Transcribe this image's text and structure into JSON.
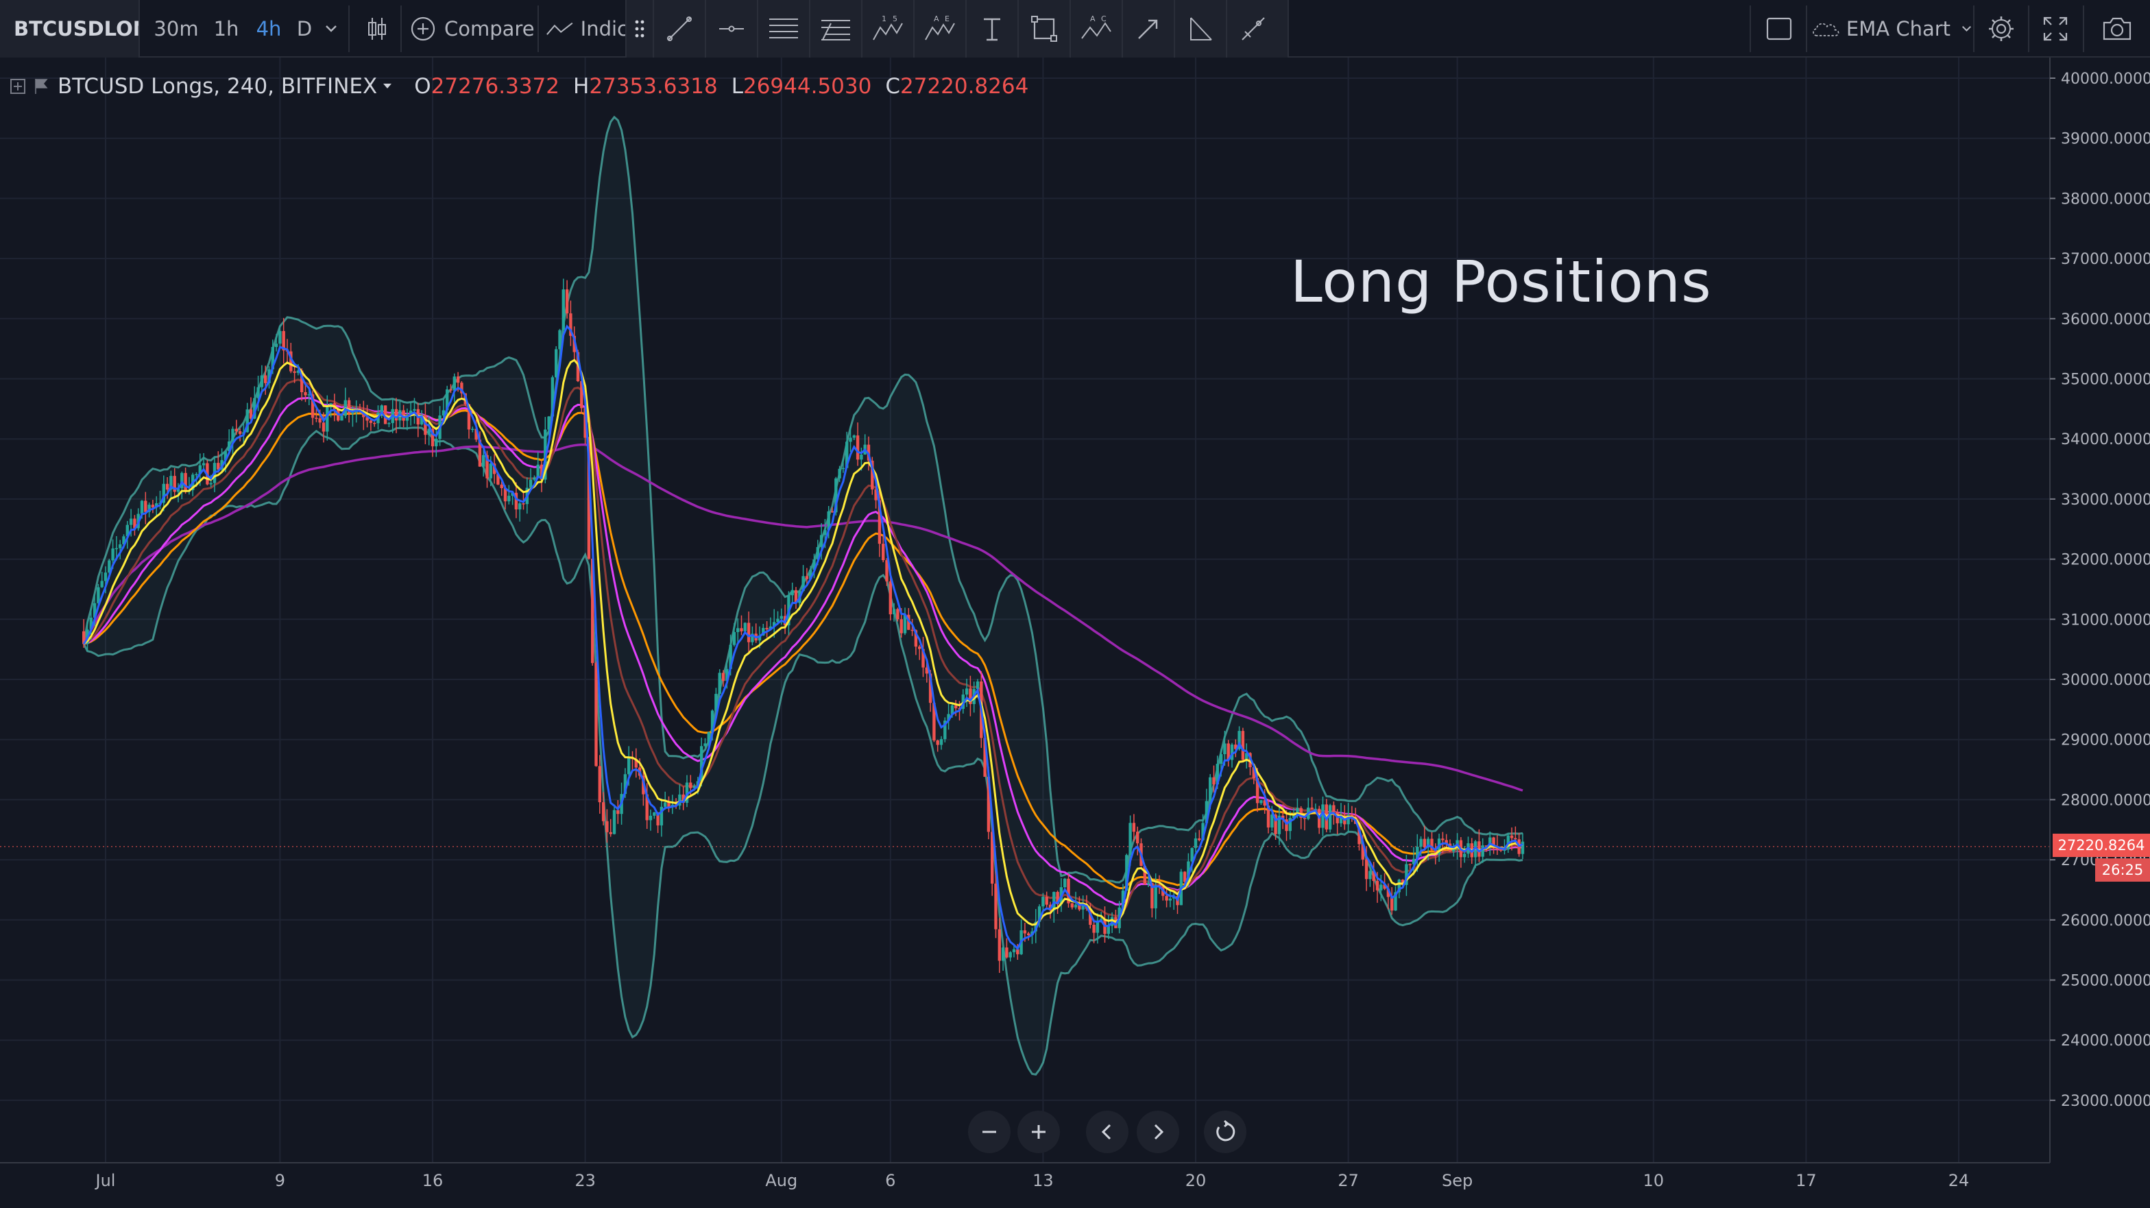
{
  "toolbar": {
    "symbol": "BTCUSDLONGS",
    "intervals": [
      "30m",
      "1h",
      "4h",
      "D"
    ],
    "active_interval": "4h",
    "compare_label": "Compare",
    "indicators_label": "Indic",
    "layout_label": "EMA Chart"
  },
  "drawing_tools": [
    {
      "icon": "trend-line-icon"
    },
    {
      "icon": "horizontal-ray-icon"
    },
    {
      "icon": "parallel-channel-icon"
    },
    {
      "icon": "fib-retracement-icon",
      "glyph": ""
    },
    {
      "icon": "xabcd-pattern-icon",
      "glyph": "1 5"
    },
    {
      "icon": "elliott-wave-icon",
      "glyph": "A E"
    },
    {
      "icon": "text-icon"
    },
    {
      "icon": "rectangle-icon"
    },
    {
      "icon": "abcd-pattern-icon",
      "glyph": "A C"
    },
    {
      "icon": "arrow-icon"
    },
    {
      "icon": "angle-icon"
    },
    {
      "icon": "brush-icon"
    }
  ],
  "legend": {
    "title": "BTCUSD Longs, 240, BITFINEX",
    "open_key": "O",
    "open": "27276.3372",
    "high_key": "H",
    "high": "27353.6318",
    "low_key": "L",
    "low": "26944.5030",
    "close_key": "C",
    "close": "27220.8264"
  },
  "annotation": "Long Positions",
  "price_scale": {
    "labels": [
      "40000.0000",
      "39000.0000",
      "38000.0000",
      "37000.0000",
      "36000.0000",
      "35000.0000",
      "34000.0000",
      "33000.0000",
      "32000.0000",
      "31000.0000",
      "30000.0000",
      "29000.0000",
      "28000.0000",
      "27000.0000",
      "26000.0000",
      "25000.0000",
      "24000.0000",
      "23000.0000"
    ],
    "last_price": "27220.8264",
    "countdown": "26:25"
  },
  "time_scale": {
    "labels": [
      "Jul",
      "9",
      "16",
      "23",
      "Aug",
      "6",
      "13",
      "20",
      "27",
      "Sep",
      "10",
      "17",
      "24"
    ]
  },
  "colors": {
    "background": "#131722",
    "grid": "#1f2433",
    "up": "#26a69a",
    "down": "#ef5350",
    "ema_fast": "#2962ff",
    "ema_yellow": "#ffeb3b",
    "ema_orange": "#ff9800",
    "ema_magenta": "#e040fb",
    "sma_purple": "#9c27b0",
    "bollinger": "#4db6ac"
  },
  "chart_data": {
    "type": "candlestick",
    "symbol": "BTCUSD Longs",
    "interval": "240",
    "exchange": "BITFINEX",
    "ylim": [
      22500,
      40200
    ],
    "grid": true,
    "x_ticks": [
      "Jul",
      "9",
      "16",
      "23",
      "Aug",
      "6",
      "13",
      "20",
      "27",
      "Sep",
      "10",
      "17",
      "24"
    ],
    "close_path_days": [
      0,
      2,
      4,
      6,
      8,
      9,
      10,
      11,
      12,
      14,
      15,
      16,
      17,
      18,
      19,
      20,
      21,
      22,
      23,
      23.5,
      24,
      24.5,
      25,
      26,
      27,
      28,
      29,
      30,
      31,
      32,
      33,
      34,
      35,
      36,
      37,
      38,
      38.5,
      39,
      40,
      41,
      42,
      43,
      44,
      45,
      46,
      47,
      47.5,
      48,
      49,
      50,
      51,
      52,
      53,
      54,
      55,
      56,
      57,
      58,
      59,
      60,
      61,
      62,
      63,
      64,
      65,
      66
    ],
    "close_path": [
      30800,
      32600,
      33200,
      33500,
      34700,
      35700,
      34800,
      34300,
      34600,
      34300,
      34400,
      34000,
      35000,
      33800,
      33200,
      32800,
      33500,
      36500,
      34000,
      28500,
      27500,
      27900,
      28800,
      27600,
      27900,
      28200,
      29800,
      30800,
      30600,
      31000,
      31600,
      32500,
      33900,
      33800,
      31000,
      30800,
      30400,
      29000,
      29500,
      29800,
      25300,
      25700,
      26300,
      26500,
      26000,
      25800,
      26200,
      27500,
      26400,
      26300,
      27200,
      28700,
      29000,
      27800,
      27500,
      27800,
      27700,
      27800,
      26700,
      26300,
      27200,
      27200,
      27200,
      27200,
      27200,
      27200
    ],
    "indicators": [
      "EMA (blue)",
      "EMA (yellow)",
      "EMA (orange)",
      "EMA (magenta)",
      "EMA (brown)",
      "SMA (purple)",
      "Bollinger Bands"
    ]
  }
}
